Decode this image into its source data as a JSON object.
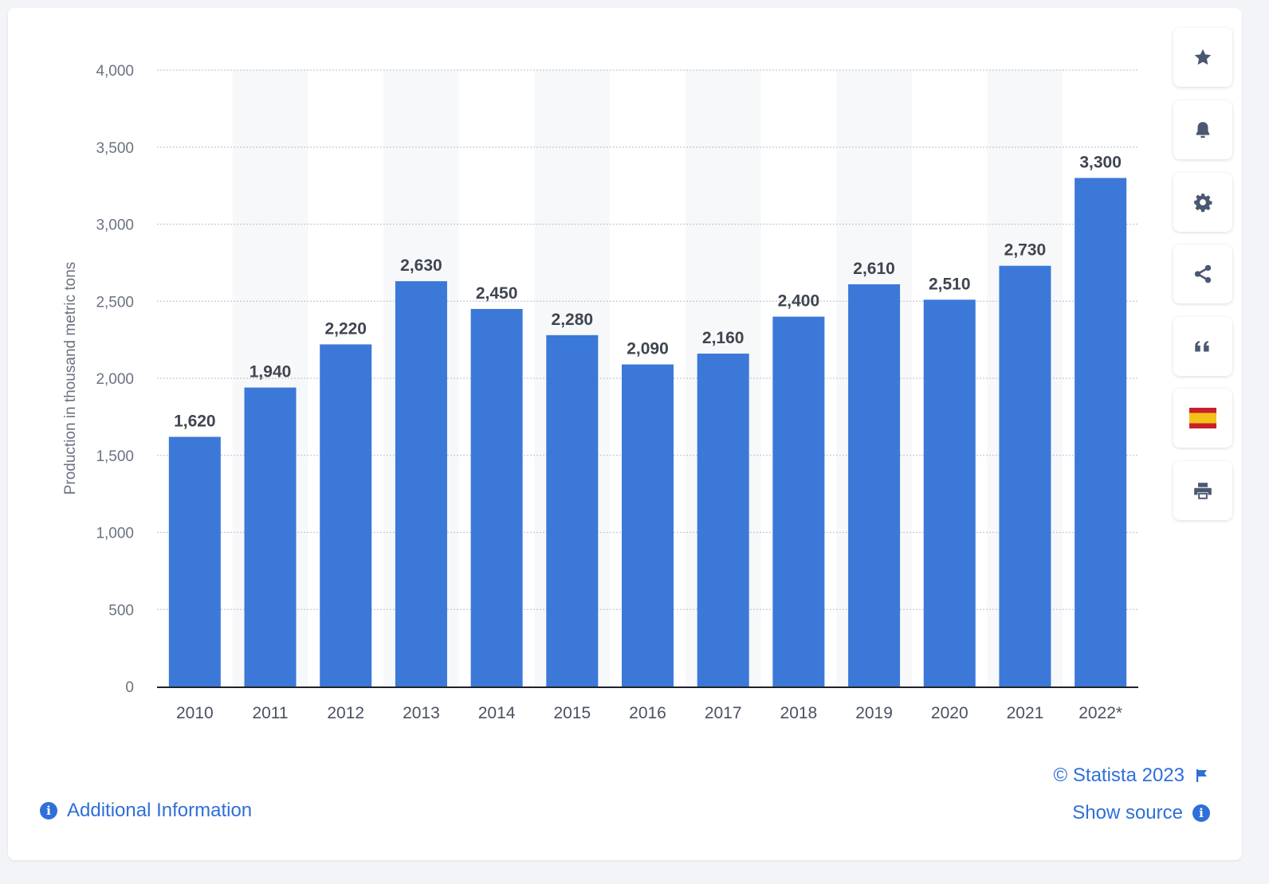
{
  "chart_data": {
    "type": "bar",
    "categories": [
      "2010",
      "2011",
      "2012",
      "2013",
      "2014",
      "2015",
      "2016",
      "2017",
      "2018",
      "2019",
      "2020",
      "2021",
      "2022*"
    ],
    "values": [
      1620,
      1940,
      2220,
      2630,
      2450,
      2280,
      2090,
      2160,
      2400,
      2610,
      2510,
      2730,
      3300
    ],
    "value_labels": [
      "1,620",
      "1,940",
      "2,220",
      "2,630",
      "2,450",
      "2,280",
      "2,090",
      "2,160",
      "2,400",
      "2,610",
      "2,510",
      "2,730",
      "3,300"
    ],
    "ylabel": "Production in thousand metric tons",
    "ylim": [
      0,
      4000
    ],
    "yticks": [
      0,
      500,
      1000,
      1500,
      2000,
      2500,
      3000,
      3500,
      4000
    ],
    "ytick_labels": [
      "0",
      "500",
      "1,000",
      "1,500",
      "2,000",
      "2,500",
      "3,000",
      "3,500",
      "4,000"
    ],
    "grid": true,
    "bar_color": "#3b78d8"
  },
  "sidebar": [
    {
      "icon": "star-icon",
      "name": "favorite-button"
    },
    {
      "icon": "bell-icon",
      "name": "notification-button"
    },
    {
      "icon": "gear-icon",
      "name": "settings-button"
    },
    {
      "icon": "share-icon",
      "name": "share-button"
    },
    {
      "icon": "quote-icon",
      "name": "cite-button"
    },
    {
      "icon": "spain-flag-icon",
      "name": "language-button"
    },
    {
      "icon": "print-icon",
      "name": "print-button"
    }
  ],
  "footer": {
    "additional_info": "Additional Information",
    "copyright": "© Statista 2023",
    "show_source": "Show source"
  },
  "colors": {
    "accent": "#2f6fd8",
    "icon": "#4a5870"
  }
}
